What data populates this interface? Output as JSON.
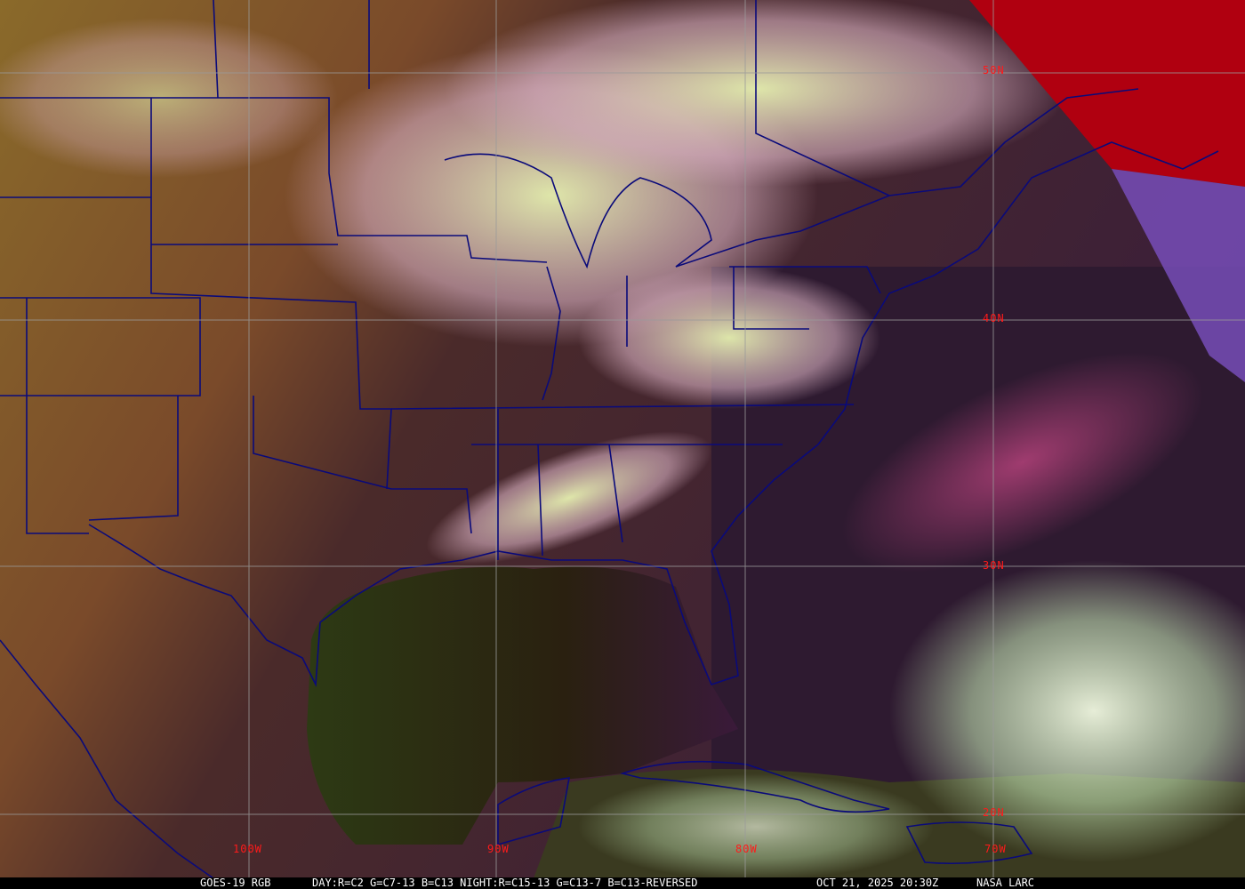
{
  "caption": {
    "product": "GOES-19 RGB",
    "recipe": "DAY:R=C2 G=C7-13 B=C13 NIGHT:R=C15-13 G=C13-7 B=C13-REVERSED",
    "timestamp": "OCT 21, 2025 20:30Z",
    "credit": "NASA LARC"
  },
  "grid": {
    "latitudes": [
      "50N",
      "40N",
      "30N",
      "20N"
    ],
    "longitudes": [
      "100W",
      "90W",
      "80W",
      "70W"
    ],
    "label_color": "#ff1a1a",
    "grid_color": "#9a9a9a",
    "boundary_color": "#0a0a7a"
  }
}
